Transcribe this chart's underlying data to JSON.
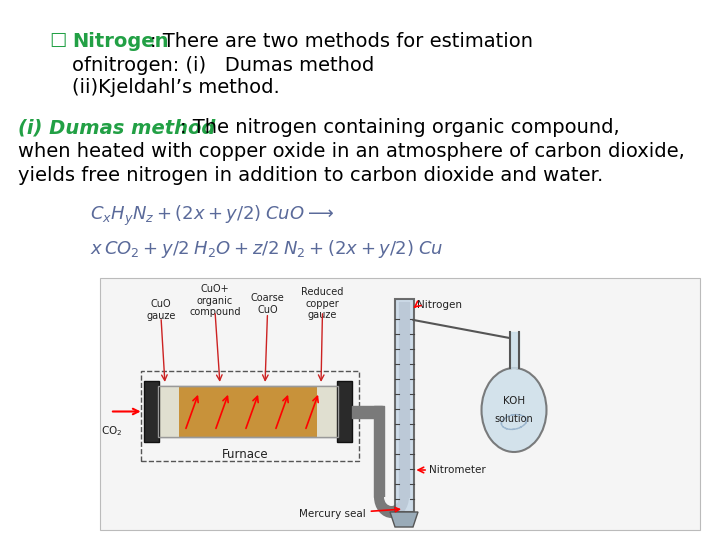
{
  "bg_color": "#ffffff",
  "green_color": "#22a045",
  "text_color": "#000000",
  "eq_color": "#5a6a9a",
  "diagram_bg": "#f0f0f0",
  "diagram_border": "#cccccc",
  "title_checkbox": "☐",
  "title_bold": "Nitrogen",
  "title_colon": ":",
  "title_rest": " There are two methods for estimation",
  "title_line2": "ofnitrogen: (i)   Dumas method",
  "title_line3": "(ii)Kjeldahl’s method.",
  "body_italic_bold": "(i) Dumas method",
  "body_after": ": The nitrogen containing organic compound,",
  "body_line2": "when heated with copper oxide in an atmosphere of carbon dioxide,",
  "body_line3": "yields free nitrogen in addition to carbon dioxide and water.",
  "eq1": "$C_xH_yN_z + (2x  +  y/2)\\;CuO \\longrightarrow$",
  "eq2": "$x\\,CO_2 + y/2\\;H_2O + z/2\\;N_2 + (2x + y/2)\\;Cu$",
  "fontsize_title": 14,
  "fontsize_body": 14,
  "fontsize_eq": 13
}
